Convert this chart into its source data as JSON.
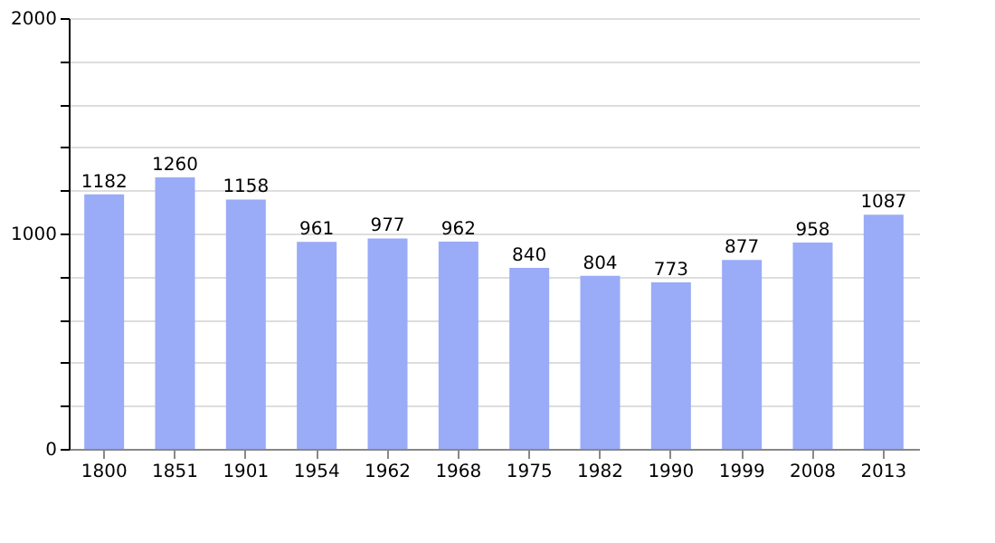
{
  "chart_data": {
    "type": "bar",
    "categories": [
      "1800",
      "1851",
      "1901",
      "1954",
      "1962",
      "1968",
      "1975",
      "1982",
      "1990",
      "1999",
      "2008",
      "2013"
    ],
    "values": [
      1182,
      1260,
      1158,
      961,
      977,
      962,
      840,
      804,
      773,
      877,
      958,
      1087
    ],
    "color": "#9aabf7",
    "ylim": [
      0,
      2000
    ],
    "yticks": [
      0,
      {
        "value": 200,
        "label": null
      },
      {
        "value": 400,
        "label": null
      },
      {
        "value": 600,
        "label": null
      },
      {
        "value": 800,
        "label": null
      },
      1000,
      {
        "value": 1200,
        "label": null
      },
      {
        "value": 1400,
        "label": null
      },
      {
        "value": 1600,
        "label": null
      },
      {
        "value": 1800,
        "label": null
      },
      2000
    ],
    "grid": "y",
    "data_labels": true
  }
}
